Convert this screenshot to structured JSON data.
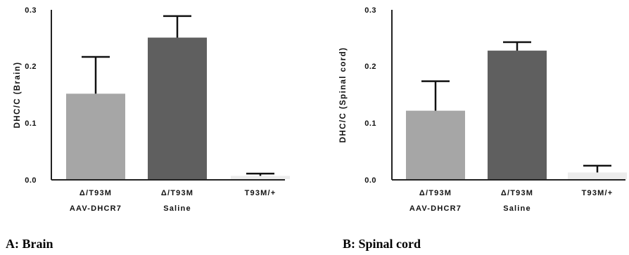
{
  "chart_data": [
    {
      "type": "bar",
      "caption": "A: Brain",
      "ylabel": "DHC/C (Brain)",
      "ylim": [
        0,
        0.3
      ],
      "yticks": [
        "0.0",
        "0.1",
        "0.2",
        "0.3"
      ],
      "categories": [
        {
          "line1": "Δ/T93M",
          "line2": "AAV-DHCR7"
        },
        {
          "line1": "Δ/T93M",
          "line2": "Saline"
        },
        {
          "line1": "T93M/+",
          "line2": ""
        }
      ],
      "values": [
        0.152,
        0.251,
        0.007
      ],
      "errors": [
        0.065,
        0.038,
        0.004
      ],
      "colors": [
        "#a6a6a6",
        "#5f5f5f",
        "#ececec"
      ]
    },
    {
      "type": "bar",
      "caption": "B: Spinal cord",
      "ylabel": "DHC/C (Spinal cord)",
      "ylim": [
        0,
        0.3
      ],
      "yticks": [
        "0.0",
        "0.1",
        "0.2",
        "0.3"
      ],
      "categories": [
        {
          "line1": "Δ/T93M",
          "line2": "AAV-DHCR7"
        },
        {
          "line1": "Δ/T93M",
          "line2": "Saline"
        },
        {
          "line1": "T93M/+",
          "line2": ""
        }
      ],
      "values": [
        0.122,
        0.228,
        0.013
      ],
      "errors": [
        0.052,
        0.015,
        0.012
      ],
      "colors": [
        "#a6a6a6",
        "#5f5f5f",
        "#ececec"
      ]
    }
  ]
}
